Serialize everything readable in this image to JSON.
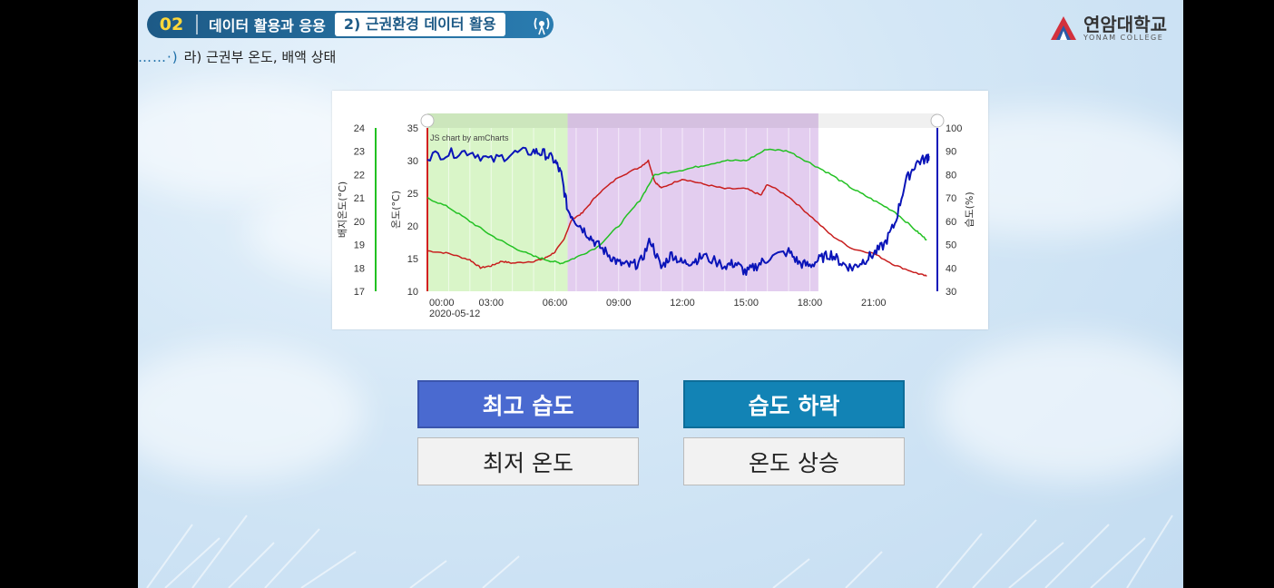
{
  "header": {
    "section_number": "02",
    "section_title": "데이터 활용과 응용",
    "subsection_title": "2) 근권환경 데이터 활용",
    "breadcrumb": "라) 근권부 온도, 배액 상태"
  },
  "logo": {
    "name": "연암대학교",
    "english": "YONAM COLLEGE",
    "colors": [
      "#d3313d",
      "#2b5aa6"
    ]
  },
  "chart_data": {
    "type": "line",
    "watermark": "JS chart by amCharts",
    "x": [
      "00:00",
      "03:00",
      "06:00",
      "09:00",
      "12:00",
      "15:00",
      "18:00",
      "21:00"
    ],
    "x_date_label": "2020-05-12",
    "xlim": [
      "00:00",
      "24:00"
    ],
    "left_axis_1": {
      "label": "배지온도(°C)",
      "ticks": [
        "17",
        "18",
        "19",
        "20",
        "21",
        "22",
        "23",
        "24"
      ],
      "range": [
        17,
        24
      ],
      "color": "#22c122"
    },
    "left_axis_2": {
      "label": "온도(°C)",
      "ticks": [
        "10",
        "15",
        "20",
        "25",
        "30",
        "35"
      ],
      "range": [
        10,
        35
      ],
      "color": "#d22020"
    },
    "right_axis": {
      "label": "습도(%)",
      "ticks": [
        "30",
        "40",
        "50",
        "60",
        "70",
        "80",
        "90",
        "100"
      ],
      "range": [
        30,
        100
      ],
      "color": "#0a12b8"
    },
    "highlight_regions": [
      {
        "from_hour": 0,
        "to_hour": 6.6,
        "color": "#d9f5c8"
      },
      {
        "from_hour": 6.6,
        "to_hour": 18.4,
        "color": "#e3cdef"
      }
    ],
    "series": [
      {
        "axis": "temp",
        "color": "#c81e1e",
        "points": [
          [
            0,
            16.2
          ],
          [
            1,
            15.8
          ],
          [
            2,
            14.8
          ],
          [
            2.5,
            13.6
          ],
          [
            3,
            13.9
          ],
          [
            3.5,
            14.6
          ],
          [
            4,
            14.3
          ],
          [
            5,
            14.6
          ],
          [
            5.5,
            15.0
          ],
          [
            6,
            16.0
          ],
          [
            6.4,
            17.8
          ],
          [
            6.8,
            21.0
          ],
          [
            7.3,
            22.0
          ],
          [
            8,
            24.8
          ],
          [
            9,
            27.5
          ],
          [
            10,
            29.0
          ],
          [
            10.4,
            30.0
          ],
          [
            10.7,
            26.8
          ],
          [
            11,
            25.8
          ],
          [
            12,
            27.2
          ],
          [
            13,
            26.4
          ],
          [
            14,
            25.7
          ],
          [
            15,
            25.7
          ],
          [
            15.7,
            24.7
          ],
          [
            16,
            26.4
          ],
          [
            17,
            24.5
          ],
          [
            18,
            21.6
          ],
          [
            19,
            18.6
          ],
          [
            20,
            16.5
          ],
          [
            21,
            15.8
          ],
          [
            22,
            14.0
          ],
          [
            23,
            12.8
          ],
          [
            23.5,
            12.3
          ]
        ]
      },
      {
        "axis": "substrate",
        "color": "#22c122",
        "points": [
          [
            0,
            21.0
          ],
          [
            1,
            20.6
          ],
          [
            2,
            20.0
          ],
          [
            3,
            19.4
          ],
          [
            4,
            18.9
          ],
          [
            5,
            18.5
          ],
          [
            5.8,
            18.3
          ],
          [
            6.3,
            18.2
          ],
          [
            7,
            18.45
          ],
          [
            8,
            18.9
          ],
          [
            9,
            19.8
          ],
          [
            10,
            20.9
          ],
          [
            10.7,
            22.0
          ],
          [
            12,
            22.2
          ],
          [
            13,
            22.4
          ],
          [
            14,
            22.6
          ],
          [
            15,
            22.6
          ],
          [
            16,
            23.1
          ],
          [
            17,
            23.0
          ],
          [
            18,
            22.5
          ],
          [
            19,
            22.0
          ],
          [
            20,
            21.4
          ],
          [
            21,
            20.9
          ],
          [
            22,
            20.4
          ],
          [
            23,
            19.6
          ],
          [
            23.5,
            19.2
          ]
        ]
      },
      {
        "axis": "humidity",
        "color": "#0a14b8",
        "points": [
          [
            0,
            88
          ],
          [
            1,
            89
          ],
          [
            2,
            90
          ],
          [
            3,
            86
          ],
          [
            4,
            89
          ],
          [
            5,
            90
          ],
          [
            5.5,
            89
          ],
          [
            6,
            86
          ],
          [
            6.3,
            80
          ],
          [
            6.6,
            65
          ],
          [
            7,
            60
          ],
          [
            7.5,
            55
          ],
          [
            8,
            50
          ],
          [
            8.5,
            46
          ],
          [
            9,
            42
          ],
          [
            9.5,
            41
          ],
          [
            10,
            42
          ],
          [
            10.5,
            52
          ],
          [
            11,
            40
          ],
          [
            11.5,
            46
          ],
          [
            12,
            42
          ],
          [
            12.5,
            43
          ],
          [
            13,
            45
          ],
          [
            14,
            41
          ],
          [
            14.5,
            42
          ],
          [
            15,
            38
          ],
          [
            15.5,
            41
          ],
          [
            16,
            44
          ],
          [
            17,
            47
          ],
          [
            17.5,
            42
          ],
          [
            18,
            41
          ],
          [
            18.5,
            44
          ],
          [
            19,
            46
          ],
          [
            19.5,
            42
          ],
          [
            20,
            40
          ],
          [
            20.5,
            43
          ],
          [
            21,
            46
          ],
          [
            21.5,
            50
          ],
          [
            22,
            59
          ],
          [
            22.5,
            77
          ],
          [
            23,
            85
          ],
          [
            23.5,
            87
          ],
          [
            23.6,
            88
          ]
        ]
      }
    ]
  },
  "buttons": {
    "top_left": "최고 습도",
    "top_right": "습도 하락",
    "bottom_left": "최저 온도",
    "bottom_right": "온도 상승"
  }
}
